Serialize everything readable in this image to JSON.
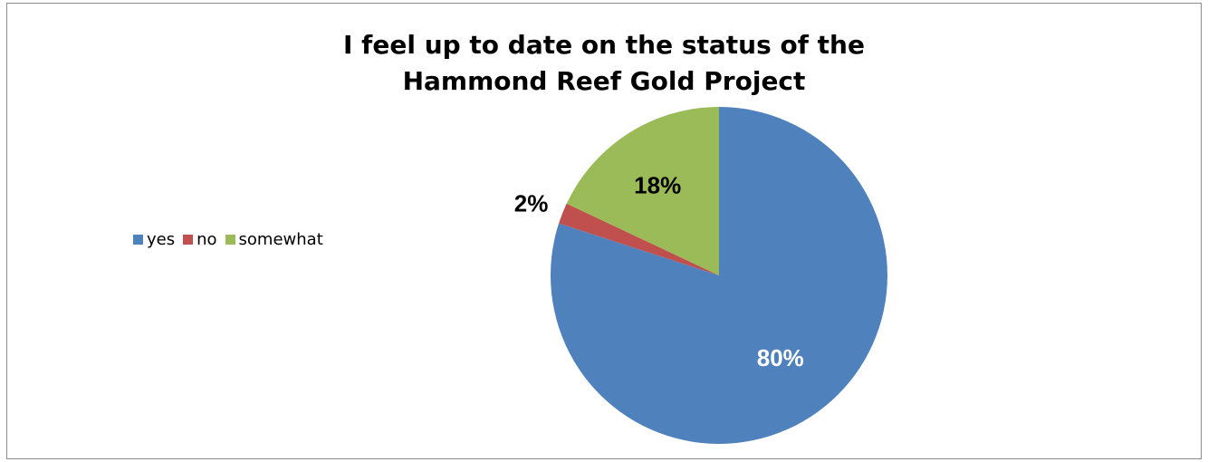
{
  "chart_data": {
    "type": "pie",
    "title_lines": [
      "I feel up to date on the status of the",
      "Hammond Reef Gold Project"
    ],
    "categories": [
      "yes",
      "no",
      "somewhat"
    ],
    "values": [
      80,
      2,
      18
    ],
    "labels": [
      "80%",
      "2%",
      "18%"
    ],
    "colors": [
      "#4f81bd",
      "#c0504d",
      "#9bbb59"
    ],
    "label_colors": [
      "#ffffff",
      "#000000",
      "#000000"
    ],
    "legend_position": "left",
    "start_angle_deg": 0,
    "direction": "clockwise"
  }
}
